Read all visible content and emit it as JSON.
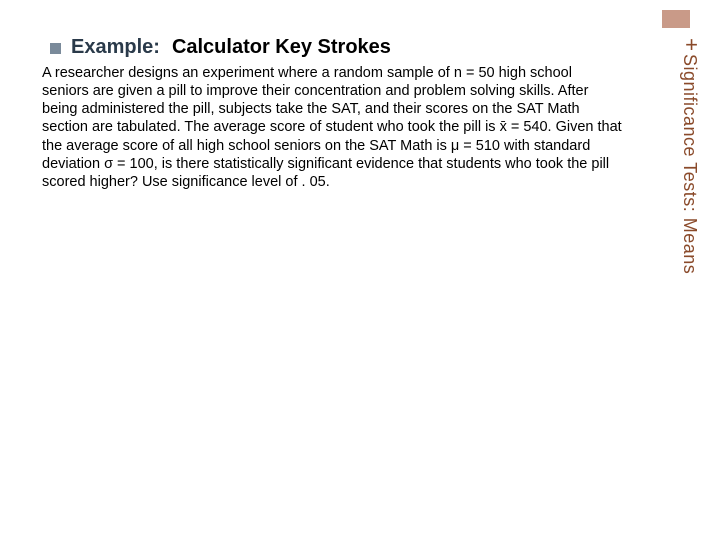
{
  "header": {
    "example_label": "Example:",
    "title_rest": "Calculator Key Strokes"
  },
  "body": {
    "paragraph": "A researcher designs an experiment where a random sample of n = 50 high school seniors are given a pill to improve their concentration and problem solving skills. After being administered the pill, subjects take the SAT, and their scores on the SAT Math section are tabulated. The average score of student who took the pill is x̄ = 540. Given that the average score of all high school seniors on the SAT Math is μ = 510 with standard deviation σ = 100, is there statistically significant evidence that students who took the pill scored higher? Use significance level of . 05."
  },
  "sidebar": {
    "vertical_text": "Significance Tests: Means",
    "plus": "+"
  },
  "colors": {
    "bullet": "#7a8a9a",
    "example_text": "#2a3a4a",
    "sidebar_text": "#8a4a2a",
    "corner_box": "#c99a88",
    "background": "#ffffff"
  },
  "typography": {
    "header_fontsize": 20,
    "body_fontsize": 14.5,
    "sidebar_fontsize": 18
  }
}
